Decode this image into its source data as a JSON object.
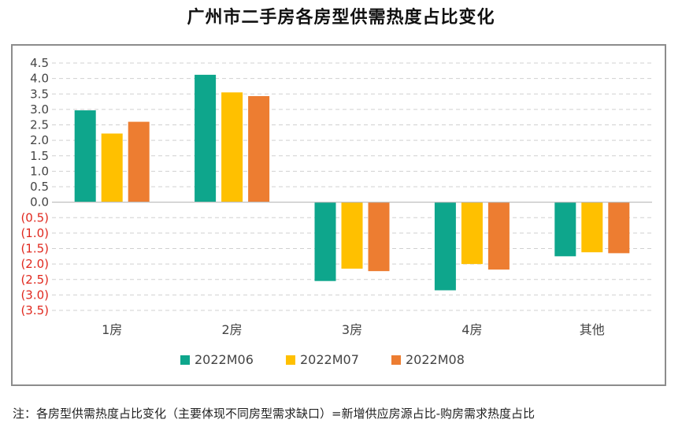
{
  "title": "广州市二手房各房型供需热度占比变化",
  "note": "注：各房型供需热度占比变化（主要体现不同房型需求缺口）=新增供应房源占比-购房需求热度占比",
  "chart_data": {
    "type": "bar",
    "title": "广州市二手房各房型供需热度占比变化",
    "categories": [
      "1房",
      "2房",
      "3房",
      "4房",
      "其他"
    ],
    "series": [
      {
        "name": "2022M06",
        "color": "#0ea68c",
        "values": [
          2.97,
          4.12,
          -2.55,
          -2.85,
          -1.75
        ]
      },
      {
        "name": "2022M07",
        "color": "#ffc000",
        "values": [
          2.22,
          3.55,
          -2.15,
          -2.0,
          -1.62
        ]
      },
      {
        "name": "2022M08",
        "color": "#ed7d31",
        "values": [
          2.6,
          3.43,
          -2.23,
          -2.18,
          -1.65
        ]
      }
    ],
    "ylim": [
      -3.5,
      4.5
    ],
    "yticks": [
      4.5,
      4.0,
      3.5,
      3.0,
      2.5,
      2.0,
      1.5,
      1.0,
      0.5,
      0.0,
      -0.5,
      -1.0,
      -1.5,
      -2.0,
      -2.5,
      -3.0,
      -3.5
    ],
    "ytick_labels": [
      "4.5",
      "4.0",
      "3.5",
      "3.0",
      "2.5",
      "2.0",
      "1.5",
      "1.0",
      "0.5",
      "0.0",
      "(0.5)",
      "(1.0)",
      "(1.5)",
      "(2.0)",
      "(2.5)",
      "(3.0)",
      "(3.5)"
    ],
    "negative_label_color": "#e0281e",
    "gridlines": true,
    "legend_position": "bottom",
    "xlabel": "",
    "ylabel": ""
  }
}
